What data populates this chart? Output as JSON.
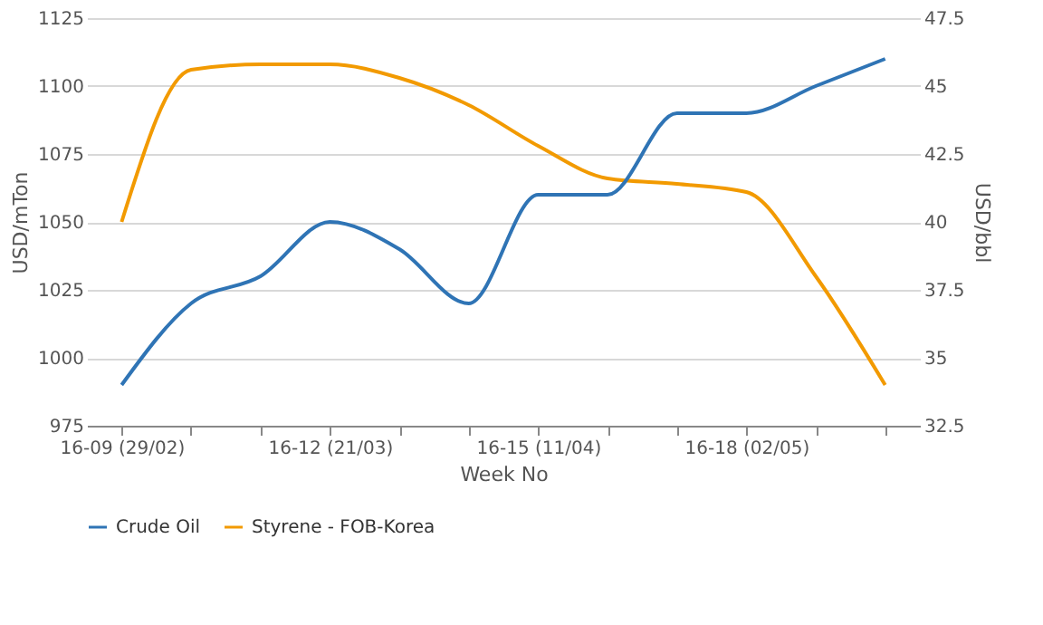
{
  "chart_data": {
    "type": "line",
    "xlabel": "Week No",
    "ylabel": "USD/mTon",
    "y2label": "USD/bbl",
    "categories": [
      "16-09 (29/02)",
      null,
      null,
      "16-12 (21/03)",
      null,
      null,
      "16-15 (11/04)",
      null,
      null,
      "16-18 (02/05)",
      null,
      null
    ],
    "series": [
      {
        "name": "Crude Oil",
        "color": "#2f74b5",
        "axis": "y2",
        "values": [
          34,
          37,
          38,
          40,
          39,
          37,
          41,
          41,
          44,
          44,
          45,
          46
        ]
      },
      {
        "name": "Styrene - FOB-Korea",
        "color": "#f29a00",
        "values": [
          1050,
          1106,
          1108,
          1108,
          1103,
          1093,
          1078,
          1066,
          1064,
          1061,
          1030,
          990
        ]
      }
    ],
    "ylim": [
      975,
      1125
    ],
    "yticks": [
      975,
      1000,
      1025,
      1050,
      1075,
      1100,
      1125
    ],
    "y2lim": [
      32.5,
      47.5
    ],
    "y2ticks": [
      32.5,
      35,
      37.5,
      40,
      42.5,
      45,
      47.5
    ],
    "grid": "y",
    "legend": "bottom",
    "marker": "none",
    "line_style": "solid"
  }
}
